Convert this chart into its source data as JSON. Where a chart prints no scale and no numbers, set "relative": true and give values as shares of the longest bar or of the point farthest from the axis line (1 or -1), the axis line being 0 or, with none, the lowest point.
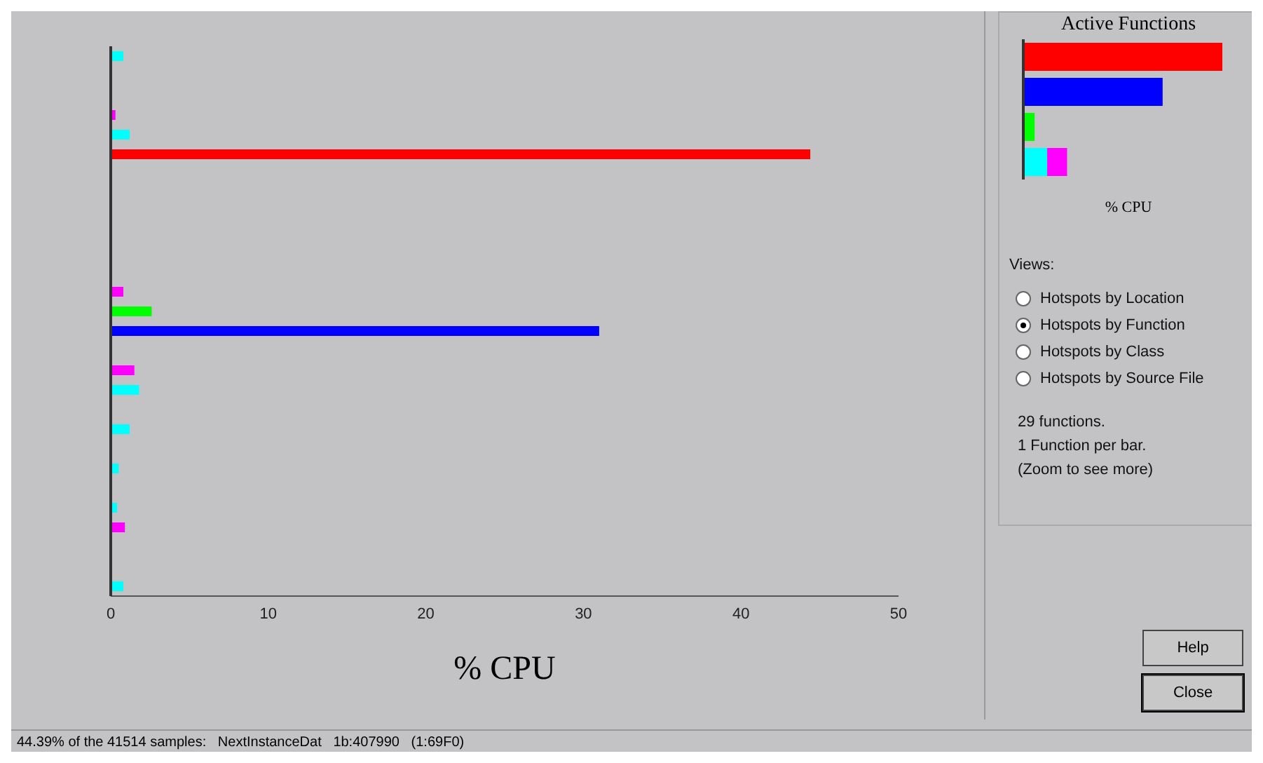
{
  "chart_data": [
    {
      "type": "bar",
      "orientation": "horizontal",
      "xlabel": "% CPU",
      "categories": [
        null,
        null,
        null,
        null,
        null,
        null,
        null,
        null,
        null,
        null,
        null,
        null,
        null,
        null,
        null,
        null,
        null,
        null,
        null,
        null,
        null,
        null,
        null,
        null,
        null,
        null,
        null,
        null
      ],
      "values": [
        0.8,
        null,
        null,
        0.3,
        1.2,
        44.4,
        null,
        null,
        null,
        null,
        null,
        null,
        0.8,
        2.6,
        31,
        null,
        1.5,
        1.8,
        null,
        1.2,
        null,
        0.5,
        null,
        0.4,
        0.9,
        null,
        null,
        0.8
      ],
      "colors": [
        "#00ffff",
        "#00ffff",
        "#00ffff",
        "#ff00ff",
        "#00ffff",
        "#ff0000",
        "#00ffff",
        "#00ffff",
        "#ff00ff",
        "#00ffff",
        "#00ffff",
        "#00ffff",
        "#ff00ff",
        "#00ff00",
        "#0000ff",
        "#00ffff",
        "#ff00ff",
        "#00ffff",
        "#ff00ff",
        "#00ffff",
        "#00ffff",
        "#00ffff",
        "#00ffff",
        "#00ffff",
        "#ff00ff",
        "#00ffff",
        "#00ffff",
        "#00ffff"
      ],
      "xlim": [
        0,
        50
      ],
      "xticks": [
        0,
        10,
        20,
        30,
        40,
        50
      ],
      "annotations": [
        "44.39% of the 41514 samples:   NextInstanceDat   1b:407990   (1:69F0)"
      ]
    },
    {
      "type": "bar",
      "orientation": "horizontal",
      "stacked": true,
      "relative": true,
      "title": "Active Functions",
      "xlabel": "% CPU",
      "categories": [
        null,
        null,
        null,
        null
      ],
      "series": [
        {
          "values": [
            1,
            0.7,
            0.057,
            0.12
          ],
          "colors": [
            "#ff0000",
            "#0000ff",
            "#00ff00",
            "#00ffff"
          ]
        },
        {
          "values": [
            null,
            null,
            null,
            0.1
          ],
          "color": "#ff00ff"
        }
      ]
    },
    {
      "type": "other",
      "title": "Views:",
      "annotations": [
        "Hotspots by Location",
        "Hotspots by Function",
        "Hotspots by Class",
        "Hotspots by Source File",
        "29 functions.",
        "1 Function per bar.",
        "(Zoom to see more)",
        "Help",
        "Close"
      ]
    }
  ]
}
